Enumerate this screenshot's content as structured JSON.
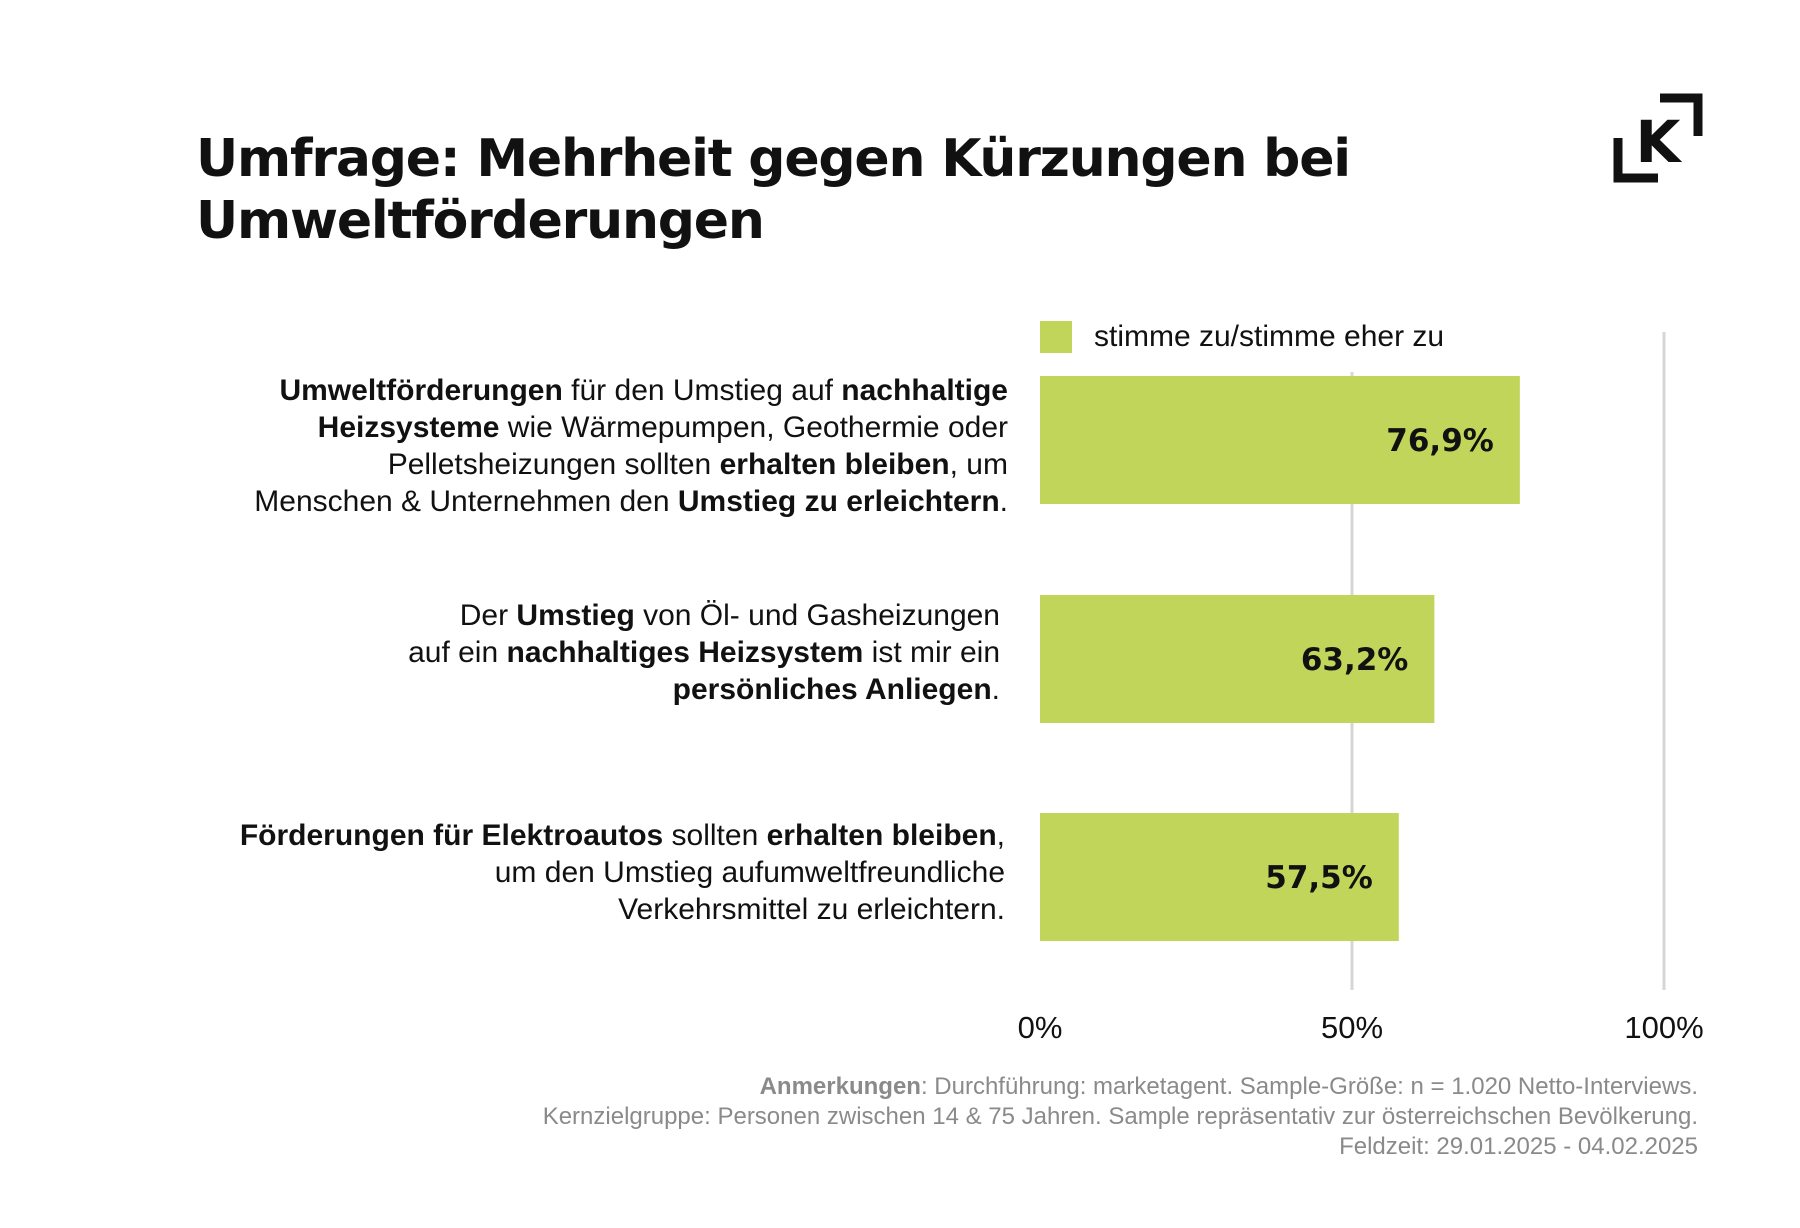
{
  "title": {
    "line1": "Umfrage: Mehrheit gegen Kürzungen bei",
    "line2": "Umweltförderungen"
  },
  "logo": {
    "icon": "k-bracket-logo-icon",
    "letter": "K"
  },
  "colors": {
    "bar": "#c2d55b",
    "grid": "#d6d6d6",
    "text": "#111111",
    "notes": "#8a8a8a"
  },
  "chart_data": {
    "type": "bar",
    "orientation": "horizontal",
    "legend": [
      "stimme zu/stimme eher zu"
    ],
    "legend_position": "top",
    "xlim": [
      0,
      100
    ],
    "x_ticks": [
      "0%",
      "50%",
      "100%"
    ],
    "x_tick_values": [
      0,
      50,
      100
    ],
    "grid": true,
    "categories": [
      "Umweltförderungen für den Umstieg auf nachhaltige Heizsysteme wie Wärmepumpen, Geothermie oder Pelletsheizungen sollten erhalten bleiben, um Menschen & Unternehmen den Umstieg zu erleichtern.",
      "Der Umstieg von Öl- und Gasheizungen auf ein nachhaltiges Heizsystem ist mir ein persönliches Anliegen.",
      "Förderungen für Elektroautos sollten erhalten bleiben, um den Umstieg aufumweltfreundliche Verkehrsmittel zu erleichtern."
    ],
    "values": [
      76.9,
      63.2,
      57.5
    ],
    "value_labels": [
      "76,9%",
      "63,2%",
      "57,5%"
    ],
    "series": [
      {
        "name": "stimme zu/stimme eher zu",
        "values": [
          76.9,
          63.2,
          57.5
        ]
      }
    ]
  },
  "row_labels": [
    [
      [
        {
          "b": true,
          "t": "Umweltförderungen"
        },
        {
          "b": false,
          "t": " für den Umstieg auf "
        },
        {
          "b": true,
          "t": "nachhaltige"
        }
      ],
      [
        {
          "b": true,
          "t": "Heizsysteme"
        },
        {
          "b": false,
          "t": " wie Wärmepumpen, Geothermie oder"
        }
      ],
      [
        {
          "b": false,
          "t": "Pelletsheizungen sollten "
        },
        {
          "b": true,
          "t": "erhalten bleiben"
        },
        {
          "b": false,
          "t": ", um"
        }
      ],
      [
        {
          "b": false,
          "t": "Menschen & Unternehmen den "
        },
        {
          "b": true,
          "t": "Umstieg zu erleichtern"
        },
        {
          "b": false,
          "t": "."
        }
      ]
    ],
    [
      [
        {
          "b": false,
          "t": "Der "
        },
        {
          "b": true,
          "t": "Umstieg"
        },
        {
          "b": false,
          "t": " von Öl- und Gasheizungen"
        }
      ],
      [
        {
          "b": false,
          "t": "auf ein "
        },
        {
          "b": true,
          "t": "nachhaltiges Heizsystem"
        },
        {
          "b": false,
          "t": " ist mir ein"
        }
      ],
      [
        {
          "b": true,
          "t": "persönliches Anliegen"
        },
        {
          "b": false,
          "t": "."
        }
      ]
    ],
    [
      [
        {
          "b": true,
          "t": "Förderungen für Elektroautos"
        },
        {
          "b": false,
          "t": " sollten "
        },
        {
          "b": true,
          "t": "erhalten bleiben"
        },
        {
          "b": false,
          "t": ","
        }
      ],
      [
        {
          "b": false,
          "t": "um den Umstieg aufumweltfreundliche"
        }
      ],
      [
        {
          "b": false,
          "t": "Verkehrsmittel zu erleichtern."
        }
      ]
    ]
  ],
  "notes": {
    "label": "Anmerkungen",
    "line1": ": Durchführung: marketagent. Sample-Größe: n = 1.020 Netto-Interviews.",
    "line2": "Kernzielgruppe: Personen zwischen 14 & 75 Jahren. Sample repräsentativ zur österreichschen Bevölkerung.",
    "line3": "Feldzeit: 29.01.2025 - 04.02.2025"
  }
}
